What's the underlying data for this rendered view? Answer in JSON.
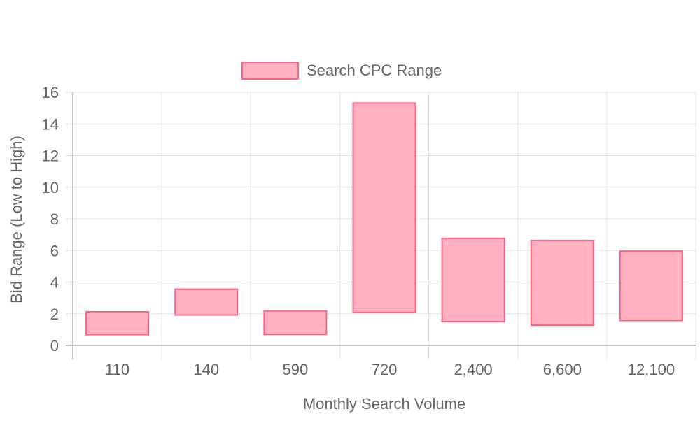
{
  "chart_data": {
    "type": "bar",
    "title": "",
    "xlabel": "Monthly Search Volume",
    "ylabel": "Bid Range (Low to High)",
    "categories": [
      "110",
      "140",
      "590",
      "720",
      "2,400",
      "6,600",
      "12,100"
    ],
    "series": [
      {
        "name": "Search CPC Range",
        "ranges": [
          [
            0.68,
            2.12
          ],
          [
            1.92,
            3.55
          ],
          [
            0.7,
            2.18
          ],
          [
            2.08,
            15.32
          ],
          [
            1.5,
            6.77
          ],
          [
            1.28,
            6.63
          ],
          [
            1.57,
            5.96
          ]
        ]
      }
    ],
    "ylim": [
      0,
      16
    ],
    "yticks": [
      0,
      2,
      4,
      6,
      8,
      10,
      12,
      14,
      16
    ],
    "grid": true,
    "legend_position": "top",
    "colors": {
      "bar_fill": "#ffb1c1",
      "bar_stroke": "#ff6384",
      "text": "#666666",
      "grid": "#e1e1e1"
    }
  }
}
